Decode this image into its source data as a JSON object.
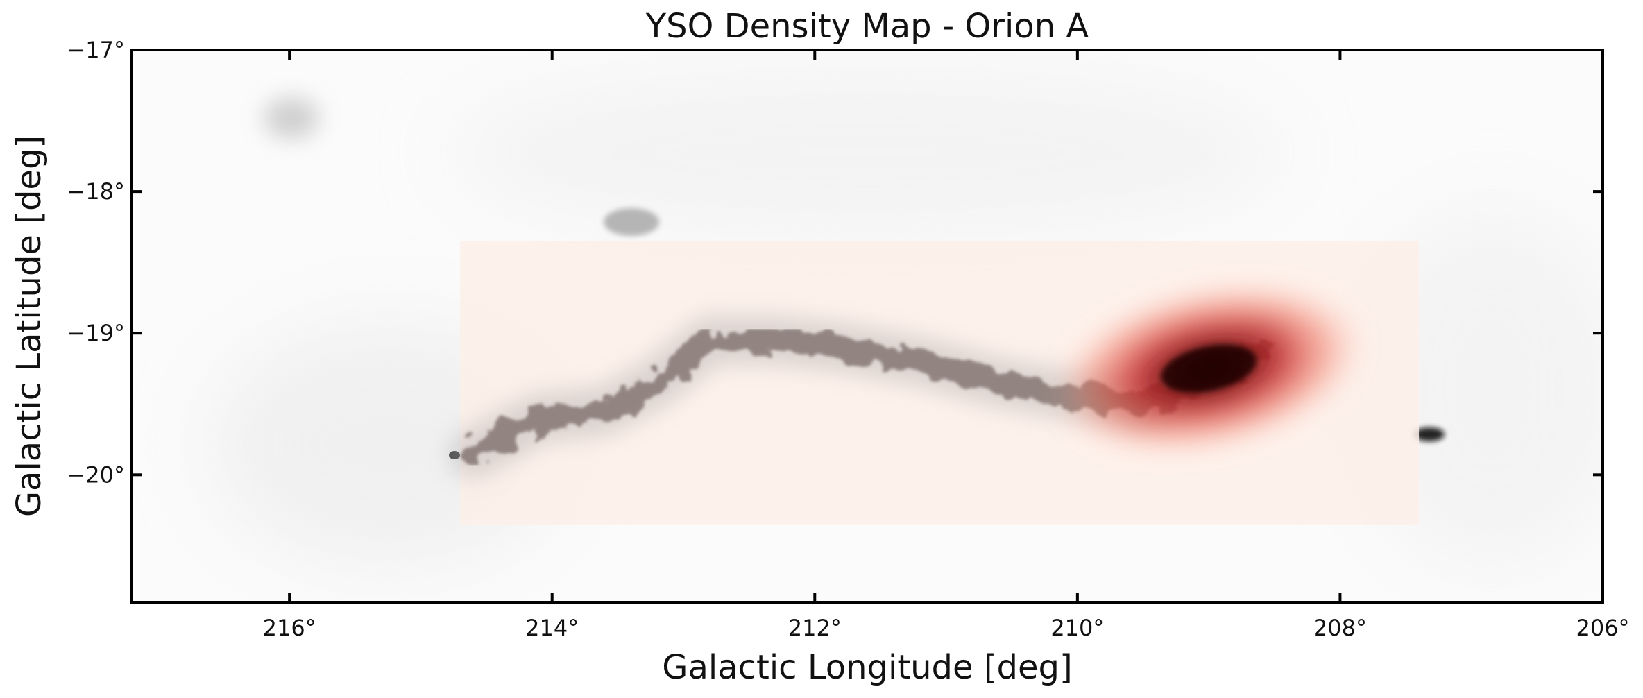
{
  "chart_data": {
    "type": "heatmap",
    "title": "YSO Density Map - Orion A",
    "xlabel": "Galactic Longitude [deg]",
    "ylabel": "Galactic Latitude [deg]",
    "xlim": [
      217.2,
      206.0
    ],
    "ylim": [
      -20.9,
      -17.0
    ],
    "x_ticks": [
      216,
      214,
      212,
      210,
      208,
      206
    ],
    "x_tick_labels": [
      "216°",
      "214°",
      "212°",
      "210°",
      "208°",
      "206°"
    ],
    "y_ticks": [
      -17,
      -18,
      -19,
      -20
    ],
    "y_tick_labels": [
      "−17°",
      "−18°",
      "−19°",
      "−20°"
    ],
    "grid": false,
    "background_cmap": "Greys",
    "overlay_cmap": "Reds",
    "overlay_extent": {
      "lon": [
        214.7,
        207.4
      ],
      "lat": [
        -20.35,
        -18.35
      ]
    },
    "density_peak": {
      "lon": 209.0,
      "lat": -19.25
    },
    "cloud_ridge": [
      {
        "lon": 214.6,
        "lat": -19.85
      },
      {
        "lon": 214.1,
        "lat": -19.6
      },
      {
        "lon": 213.6,
        "lat": -19.55
      },
      {
        "lon": 213.2,
        "lat": -19.35
      },
      {
        "lon": 212.8,
        "lat": -19.05
      },
      {
        "lon": 212.3,
        "lat": -19.05
      },
      {
        "lon": 211.8,
        "lat": -19.1
      },
      {
        "lon": 211.2,
        "lat": -19.2
      },
      {
        "lon": 210.6,
        "lat": -19.35
      },
      {
        "lon": 210.0,
        "lat": -19.45
      },
      {
        "lon": 209.5,
        "lat": -19.5
      },
      {
        "lon": 209.0,
        "lat": -19.3
      },
      {
        "lon": 208.6,
        "lat": -19.1
      }
    ],
    "colors": {
      "axis": "#000000",
      "cloud": "#6b6b6b",
      "overlay_base": "#fdeee8",
      "peak_core": "#2a0a08",
      "peak_mid": "#b3151c",
      "peak_outer": "#f27a63"
    }
  }
}
